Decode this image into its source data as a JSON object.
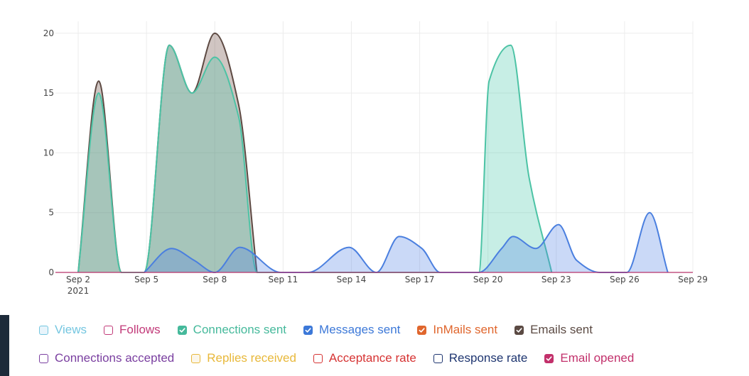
{
  "chart_data": {
    "type": "area",
    "x_axis": {
      "tick_labels": [
        "Sep 2",
        "Sep 5",
        "Sep 8",
        "Sep 11",
        "Sep 14",
        "Sep 17",
        "Sep 20",
        "Sep 23",
        "Sep 26",
        "Sep 29"
      ],
      "tick_days": [
        2,
        5,
        8,
        11,
        14,
        17,
        20,
        23,
        26,
        29
      ],
      "year_label": "2021",
      "range": [
        "2021-09-01",
        "2021-09-29"
      ]
    },
    "y_axis": {
      "ticks": [
        0,
        5,
        10,
        15,
        20
      ],
      "range": [
        0,
        21
      ]
    },
    "grid": true,
    "series": [
      {
        "name": "Emails sent",
        "color": "#5d4a43",
        "fill": "rgba(120,90,80,0.35)",
        "points": [
          [
            2,
            0
          ],
          [
            2.9,
            16
          ],
          [
            3.9,
            0
          ],
          [
            4.9,
            0
          ],
          [
            6,
            19
          ],
          [
            7,
            15
          ],
          [
            8,
            20
          ],
          [
            9.05,
            14
          ],
          [
            9.85,
            0
          ]
        ]
      },
      {
        "name": "Connections sent",
        "color": "#4cc3a5",
        "fill": "rgba(70,200,170,0.30)",
        "points": [
          [
            2,
            0
          ],
          [
            2.9,
            15
          ],
          [
            3.9,
            0
          ],
          [
            4.9,
            0
          ],
          [
            6,
            19
          ],
          [
            7,
            15
          ],
          [
            8,
            18
          ],
          [
            9.05,
            13
          ],
          [
            9.85,
            0
          ],
          [
            19.6,
            0
          ],
          [
            20.05,
            16
          ],
          [
            21,
            19
          ],
          [
            21.8,
            8
          ],
          [
            22.8,
            0
          ]
        ]
      },
      {
        "name": "Messages sent",
        "color": "#4a7fdf",
        "fill": "rgba(80,130,230,0.30)",
        "points": [
          [
            4.9,
            0
          ],
          [
            6.1,
            2
          ],
          [
            7.1,
            1
          ],
          [
            8,
            0
          ],
          [
            9.1,
            2.1
          ],
          [
            10.9,
            0
          ],
          [
            12.1,
            0
          ],
          [
            13.9,
            2.1
          ],
          [
            15.1,
            0
          ],
          [
            16.1,
            3
          ],
          [
            17.1,
            2
          ],
          [
            17.9,
            0
          ],
          [
            19.6,
            0
          ],
          [
            20.6,
            2
          ],
          [
            21.1,
            3
          ],
          [
            22.1,
            2
          ],
          [
            23.1,
            4
          ],
          [
            23.9,
            1
          ],
          [
            24.9,
            0
          ],
          [
            26.1,
            0
          ],
          [
            27.1,
            5
          ],
          [
            27.9,
            0
          ]
        ]
      }
    ]
  },
  "legend": [
    [
      {
        "label": "Views",
        "color": "#74c6e0",
        "checked": false,
        "fill": "#e8f4fb"
      },
      {
        "label": "Follows",
        "color": "#c23a79",
        "checked": false,
        "fill": "#ffffff"
      },
      {
        "label": "Connections sent",
        "color": "#45b99b",
        "checked": true,
        "fill": "#45b99b"
      },
      {
        "label": "Messages sent",
        "color": "#3c78d8",
        "checked": true,
        "fill": "#3c78d8"
      },
      {
        "label": "InMails sent",
        "color": "#e0662d",
        "checked": true,
        "fill": "#e0662d"
      },
      {
        "label": "Emails sent",
        "color": "#5b4a43",
        "checked": true,
        "fill": "#5b4a43"
      }
    ],
    [
      {
        "label": "Connections accepted",
        "color": "#7a3fa0",
        "checked": false,
        "fill": "#ffffff"
      },
      {
        "label": "Replies received",
        "color": "#e8b83a",
        "checked": false,
        "fill": "#fbf6ea"
      },
      {
        "label": "Acceptance rate",
        "color": "#d63333",
        "checked": false,
        "fill": "#ffffff"
      },
      {
        "label": "Response rate",
        "color": "#1e3570",
        "checked": false,
        "fill": "#ffffff"
      },
      {
        "label": "Email opened",
        "color": "#c2306b",
        "checked": true,
        "fill": "#c2306b"
      }
    ]
  ]
}
